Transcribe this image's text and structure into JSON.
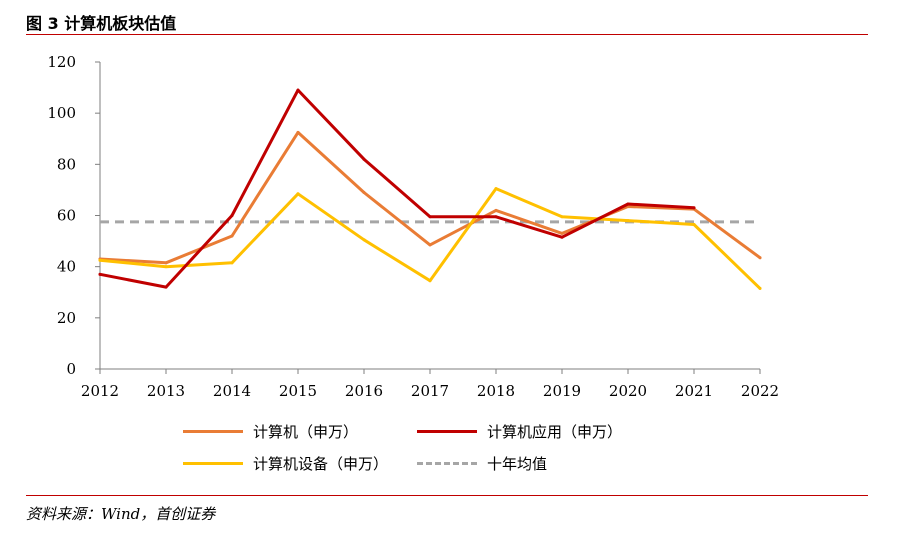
{
  "header": {
    "title": "图 3 计算机板块估值"
  },
  "footer": {
    "source": "资料来源：Wind，首创证券"
  },
  "chart_data": {
    "type": "line",
    "title": "",
    "xlabel": "",
    "ylabel": "",
    "x": [
      "2012",
      "2013",
      "2014",
      "2015",
      "2016",
      "2017",
      "2018",
      "2019",
      "2020",
      "2021",
      "2022"
    ],
    "ylim": [
      0,
      120
    ],
    "yticks": [
      0,
      20,
      40,
      60,
      80,
      100,
      120
    ],
    "grid": false,
    "legend_position": "bottom",
    "series": [
      {
        "name": "计算机（申万）",
        "color": "#E97C35",
        "values": [
          43,
          41.5,
          52,
          92.5,
          69,
          48.5,
          62,
          53,
          63.5,
          62.5,
          43.5
        ]
      },
      {
        "name": "计算机应用（申万）",
        "color": "#C00000",
        "values": [
          37,
          32,
          60,
          109,
          82,
          59.5,
          59.5,
          51.5,
          64.5,
          63,
          null
        ]
      },
      {
        "name": "计算机设备（申万）",
        "color": "#FFC000",
        "values": [
          42.5,
          40,
          41.5,
          68.5,
          50.5,
          34.5,
          70.5,
          59.5,
          58,
          56.5,
          31.5
        ]
      },
      {
        "name": "十年均值",
        "color": "#A6A6A6",
        "dashed": true,
        "values": [
          57.5,
          57.5,
          57.5,
          57.5,
          57.5,
          57.5,
          57.5,
          57.5,
          57.5,
          57.5,
          57.5
        ]
      }
    ]
  }
}
